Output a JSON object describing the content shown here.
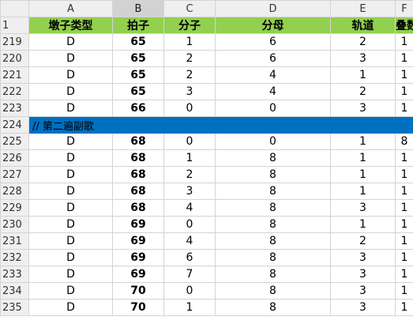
{
  "columns": [
    "A",
    "B",
    "C",
    "D",
    "E",
    "F"
  ],
  "header_row": {
    "num": "1",
    "cells": [
      "墩子类型",
      "拍子",
      "分子",
      "分母",
      "轨道",
      "叠数"
    ]
  },
  "rows": [
    {
      "num": "219",
      "cells": [
        "D",
        "65",
        "1",
        "6",
        "2",
        "1"
      ]
    },
    {
      "num": "220",
      "cells": [
        "D",
        "65",
        "2",
        "6",
        "3",
        "1"
      ]
    },
    {
      "num": "221",
      "cells": [
        "D",
        "65",
        "2",
        "4",
        "1",
        "1"
      ]
    },
    {
      "num": "222",
      "cells": [
        "D",
        "65",
        "3",
        "4",
        "2",
        "1"
      ]
    },
    {
      "num": "223",
      "cells": [
        "D",
        "66",
        "0",
        "0",
        "3",
        "1"
      ]
    },
    {
      "num": "224",
      "section": "// 第二遍副歌"
    },
    {
      "num": "225",
      "cells": [
        "D",
        "68",
        "0",
        "0",
        "1",
        "8"
      ]
    },
    {
      "num": "226",
      "cells": [
        "D",
        "68",
        "1",
        "8",
        "1",
        "1"
      ]
    },
    {
      "num": "227",
      "cells": [
        "D",
        "68",
        "2",
        "8",
        "1",
        "1"
      ]
    },
    {
      "num": "228",
      "cells": [
        "D",
        "68",
        "3",
        "8",
        "1",
        "1"
      ]
    },
    {
      "num": "229",
      "cells": [
        "D",
        "68",
        "4",
        "8",
        "3",
        "1"
      ]
    },
    {
      "num": "230",
      "cells": [
        "D",
        "69",
        "0",
        "8",
        "1",
        "1"
      ]
    },
    {
      "num": "231",
      "cells": [
        "D",
        "69",
        "4",
        "8",
        "2",
        "1"
      ]
    },
    {
      "num": "232",
      "cells": [
        "D",
        "69",
        "6",
        "8",
        "3",
        "1"
      ]
    },
    {
      "num": "233",
      "cells": [
        "D",
        "69",
        "7",
        "8",
        "3",
        "1"
      ]
    },
    {
      "num": "234",
      "cells": [
        "D",
        "70",
        "0",
        "8",
        "3",
        "1"
      ]
    },
    {
      "num": "235",
      "cells": [
        "D",
        "70",
        "1",
        "8",
        "3",
        "1"
      ]
    }
  ],
  "colors": {
    "header_green": "#92d050",
    "section_blue": "#0070c0",
    "selected_column_header": "#d2d2d2"
  }
}
